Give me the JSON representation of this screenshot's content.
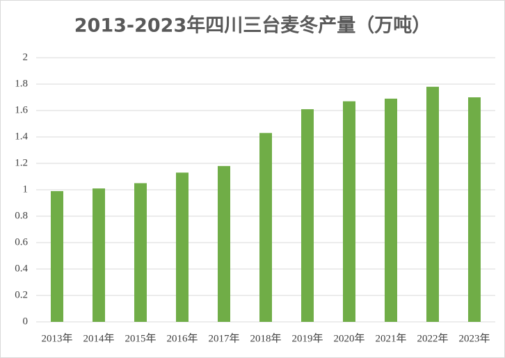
{
  "chart_data": {
    "type": "bar",
    "title": "2013-2023年四川三台麦冬产量（万吨）",
    "categories": [
      "2013年",
      "2014年",
      "2015年",
      "2016年",
      "2017年",
      "2018年",
      "2019年",
      "2020年",
      "2021年",
      "2022年",
      "2023年"
    ],
    "values": [
      0.99,
      1.01,
      1.05,
      1.13,
      1.18,
      1.43,
      1.61,
      1.67,
      1.69,
      1.78,
      1.7
    ],
    "color": "#70ad47",
    "ylim": [
      0,
      2
    ],
    "yticks": [
      0,
      0.2,
      0.4,
      0.6,
      0.8,
      1,
      1.2,
      1.4,
      1.6,
      1.8,
      2
    ],
    "grid": true
  }
}
